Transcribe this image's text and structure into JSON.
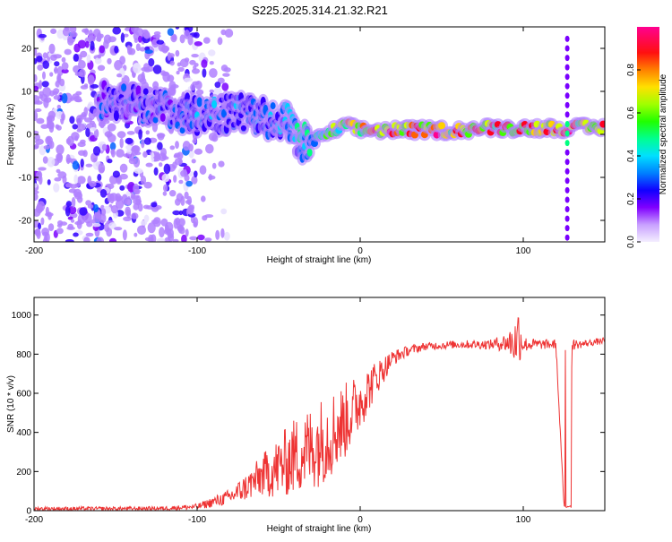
{
  "figure_title": "S225.2025.314.21.32.R21",
  "colors": {
    "snr_line": "#ee3333",
    "colormap": [
      "#e8e0ff",
      "#b080ff",
      "#7a00ff",
      "#3000ff",
      "#0060ff",
      "#00d0ff",
      "#00ff80",
      "#40ff00",
      "#d0ff00",
      "#ffd000",
      "#ff6000",
      "#ff0020",
      "#ff0090"
    ]
  },
  "chart_data": [
    {
      "type": "heatmap",
      "title": "",
      "xlabel": "Height of straight line (km)",
      "ylabel": "Frequency (Hz)",
      "xlim": [
        -200,
        150
      ],
      "ylim": [
        -25,
        25
      ],
      "x_ticks": [
        -200,
        -100,
        0,
        100
      ],
      "x_tick_labels": [
        "-200",
        "-100",
        "0",
        "100"
      ],
      "y_ticks": [
        -20,
        -10,
        0,
        10,
        20
      ],
      "y_tick_labels": [
        "-20",
        "-10",
        "0",
        "10",
        "20"
      ],
      "colorbar": {
        "label": "Normalized spectral amplitude",
        "range": [
          0,
          1
        ],
        "ticks": [
          0.0,
          0.2,
          0.4,
          0.6,
          0.8
        ],
        "tick_labels": [
          "0.0",
          "0.2",
          "0.4",
          "0.6",
          "0.8"
        ]
      },
      "ridge": {
        "height_km": [
          -150,
          -120,
          -100,
          -80,
          -60,
          -45,
          -38,
          -30,
          -20,
          -10,
          0,
          20,
          40,
          60,
          80,
          100,
          120,
          150
        ],
        "freq_hz": [
          8,
          6,
          4,
          5,
          4,
          3,
          -2,
          -2,
          0,
          2,
          1,
          1,
          1,
          1,
          1.5,
          1.5,
          1.5,
          1.5
        ],
        "amplitude": [
          0.3,
          0.3,
          0.35,
          0.35,
          0.35,
          0.4,
          0.45,
          0.5,
          0.6,
          0.7,
          0.8,
          0.9,
          0.95,
          0.85,
          0.9,
          0.85,
          0.9,
          0.85
        ]
      },
      "vertical_stripe_height_km": 127
    },
    {
      "type": "line",
      "title": "",
      "xlabel": "Height of straight line (km)",
      "ylabel": "SNR (10 * v/v)",
      "xlim": [
        -200,
        150
      ],
      "ylim": [
        0,
        1090
      ],
      "x_ticks": [
        -200,
        -100,
        0,
        100
      ],
      "x_tick_labels": [
        "-200",
        "-100",
        "0",
        "100"
      ],
      "y_ticks": [
        0,
        200,
        400,
        600,
        800,
        1000
      ],
      "y_tick_labels": [
        "0",
        "200",
        "400",
        "600",
        "800",
        "1000"
      ],
      "series": [
        {
          "name": "SNR",
          "x": [
            -200,
            -150,
            -120,
            -100,
            -80,
            -70,
            -60,
            -50,
            -40,
            -30,
            -20,
            -10,
            0,
            10,
            20,
            30,
            40,
            60,
            80,
            90,
            95,
            97,
            100,
            110,
            120,
            125,
            128,
            130,
            135,
            150
          ],
          "y": [
            10,
            10,
            12,
            20,
            70,
            120,
            180,
            220,
            280,
            320,
            380,
            450,
            560,
            680,
            780,
            820,
            840,
            850,
            850,
            860,
            860,
            900,
            850,
            850,
            850,
            20,
            20,
            850,
            850,
            870
          ],
          "noise": [
            10,
            10,
            10,
            15,
            40,
            70,
            110,
            160,
            200,
            220,
            230,
            200,
            150,
            90,
            40,
            25,
            20,
            20,
            25,
            50,
            120,
            160,
            40,
            25,
            25,
            5,
            5,
            30,
            20,
            15
          ]
        }
      ]
    }
  ]
}
